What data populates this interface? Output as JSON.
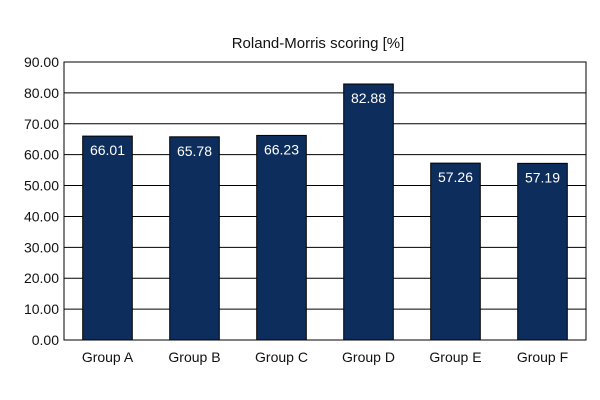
{
  "chart_data": {
    "type": "bar",
    "title": "Roland-Morris scoring [%]",
    "xlabel": "",
    "ylabel": "",
    "categories": [
      "Group A",
      "Group B",
      "Group C",
      "Group D",
      "Group E",
      "Group F"
    ],
    "values": [
      66.01,
      65.78,
      66.23,
      82.88,
      57.26,
      57.19
    ],
    "data_labels": [
      "66.01",
      "65.78",
      "66.23",
      "82.88",
      "57.26",
      "57.19"
    ],
    "ylim": [
      0,
      90
    ],
    "ytick_step": 10,
    "ytick_labels": [
      "0.00",
      "10.00",
      "20.00",
      "30.00",
      "40.00",
      "50.00",
      "60.00",
      "70.00",
      "80.00",
      "90.00"
    ],
    "grid": true,
    "legend": "none",
    "bar_color": "#0d2d5c",
    "grid_color": "#000000"
  }
}
